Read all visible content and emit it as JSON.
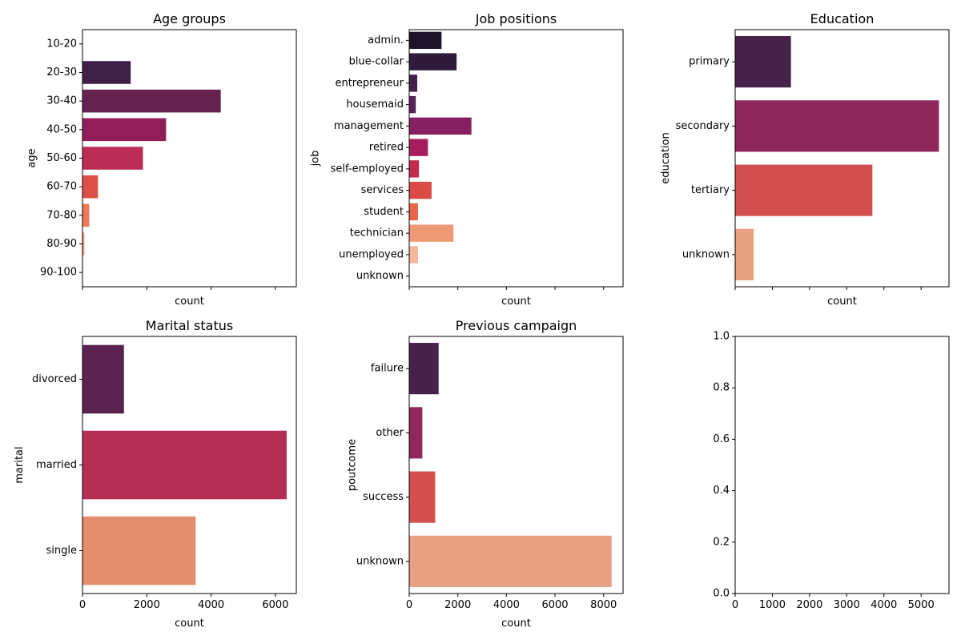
{
  "chart_data": [
    {
      "type": "bar",
      "orientation": "horizontal",
      "title": "Age groups",
      "xlabel": "count",
      "ylabel": "age",
      "categories": [
        "10-20",
        "20-30",
        "30-40",
        "40-50",
        "50-60",
        "60-70",
        "70-80",
        "80-90",
        "90-100"
      ],
      "values": [
        0,
        1500,
        4300,
        2600,
        1880,
        480,
        210,
        60,
        0
      ],
      "xlim": [
        0,
        6650
      ],
      "x_ticks_labeled": false,
      "colors": [
        "#2d1e3e",
        "#3f2047",
        "#66224f",
        "#921e59",
        "#bb2d55",
        "#dd5047",
        "#ef7a56",
        "#f5a37d",
        "#f6c29f"
      ]
    },
    {
      "type": "bar",
      "orientation": "horizontal",
      "title": "Job positions",
      "xlabel": "count",
      "ylabel": "job",
      "categories": [
        "admin.",
        "blue-collar",
        "entrepreneur",
        "housemaid",
        "management",
        "retired",
        "self-employed",
        "services",
        "student",
        "technician",
        "unemployed",
        "unknown"
      ],
      "values": [
        1330,
        1950,
        330,
        270,
        2560,
        770,
        400,
        920,
        360,
        1820,
        360,
        20
      ],
      "xlim": [
        0,
        8800
      ],
      "x_ticks_labeled": false,
      "colors": [
        "#1c1329",
        "#2f1b3a",
        "#45204b",
        "#58215a",
        "#862060",
        "#a61d5b",
        "#c22c51",
        "#db4b45",
        "#e96549",
        "#ee9a75",
        "#f3b697",
        "#f6cfb4"
      ]
    },
    {
      "type": "bar",
      "orientation": "horizontal",
      "title": "Education",
      "xlabel": "count",
      "ylabel": "education",
      "categories": [
        "primary",
        "secondary",
        "tertiary",
        "unknown"
      ],
      "values": [
        1500,
        5480,
        3690,
        500
      ],
      "xlim": [
        0,
        5750
      ],
      "x_ticks_labeled": false,
      "colors": [
        "#47224a",
        "#8f275b",
        "#d45050",
        "#e8a283"
      ]
    },
    {
      "type": "bar",
      "orientation": "horizontal",
      "title": "Marital status",
      "xlabel": "count",
      "ylabel": "marital",
      "categories": [
        "divorced",
        "married",
        "single"
      ],
      "values": [
        1290,
        6350,
        3520
      ],
      "xlim": [
        0,
        6650
      ],
      "xticks": [
        0,
        2000,
        4000,
        6000
      ],
      "colors": [
        "#5a2350",
        "#b32f56",
        "#e48e6e"
      ]
    },
    {
      "type": "bar",
      "orientation": "horizontal",
      "title": "Previous campaign",
      "xlabel": "count",
      "ylabel": "poutcome",
      "categories": [
        "failure",
        "other",
        "success",
        "unknown"
      ],
      "values": [
        1210,
        540,
        1070,
        8330
      ],
      "xlim": [
        0,
        8800
      ],
      "xticks": [
        0,
        2000,
        4000,
        6000,
        8000
      ],
      "colors": [
        "#47224a",
        "#8f275b",
        "#d45050",
        "#e8a283"
      ]
    },
    {
      "type": "empty",
      "title": "",
      "xlim": [
        0,
        5750
      ],
      "ylim": [
        0,
        1
      ],
      "xticks": [
        0,
        1000,
        2000,
        3000,
        4000,
        5000
      ],
      "yticks": [
        "0.0",
        "0.2",
        "0.4",
        "0.6",
        "0.8",
        "1.0"
      ]
    }
  ]
}
